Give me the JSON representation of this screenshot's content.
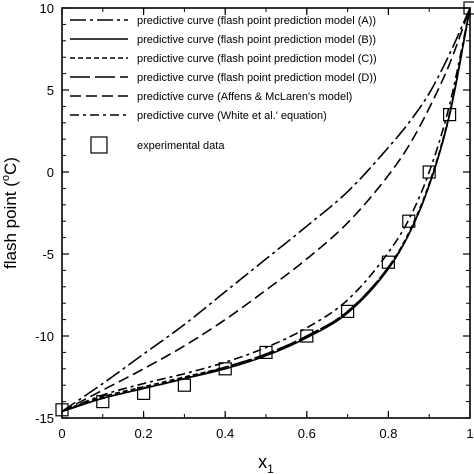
{
  "chart_data": {
    "type": "line",
    "xlabel": "x",
    "xlabel_sub": "1",
    "ylabel": "flash point (",
    "ylabel_sup": "o",
    "ylabel_unit": "C)",
    "xlim": [
      0,
      1
    ],
    "ylim": [
      -15,
      10
    ],
    "x_ticks": [
      0,
      0.2,
      0.4,
      0.6,
      0.8,
      1
    ],
    "x_tick_labels": [
      "0",
      "0.2",
      "0.4",
      "0.6",
      "0.8",
      "1"
    ],
    "y_ticks": [
      -15,
      -10,
      -5,
      0,
      5,
      10
    ],
    "y_tick_labels": [
      "-15",
      "-10",
      "-5",
      "0",
      "5",
      "10"
    ],
    "grid": false,
    "legend_position": "top-left",
    "series": [
      {
        "name": "predictive curve (flash point prediction model (A))",
        "dash": "long-dash-dot",
        "x": [
          0,
          0.1,
          0.2,
          0.3,
          0.4,
          0.5,
          0.6,
          0.7,
          0.8,
          0.85,
          0.9,
          0.95,
          1.0
        ],
        "y": [
          -14.6,
          -12.9,
          -11.1,
          -9.3,
          -7.3,
          -5.3,
          -3.3,
          -1.2,
          1.5,
          3.0,
          4.8,
          7.2,
          10.0
        ]
      },
      {
        "name": "predictive curve (flash point prediction model (B))",
        "dash": "solid",
        "x": [
          0,
          0.1,
          0.2,
          0.3,
          0.4,
          0.5,
          0.6,
          0.7,
          0.8,
          0.85,
          0.9,
          0.95,
          1.0
        ],
        "y": [
          -14.6,
          -13.8,
          -13.2,
          -12.6,
          -12.0,
          -11.2,
          -10.1,
          -8.6,
          -5.9,
          -3.8,
          -0.8,
          3.5,
          10.0
        ]
      },
      {
        "name": "predictive curve (flash point prediction model (C))",
        "dash": "short-dash",
        "x": [
          0,
          0.1,
          0.2,
          0.3,
          0.4,
          0.5,
          0.6,
          0.7,
          0.8,
          0.85,
          0.9,
          0.95,
          1.0
        ],
        "y": [
          -14.6,
          -13.7,
          -13.1,
          -12.5,
          -11.9,
          -11.1,
          -10.0,
          -8.5,
          -5.8,
          -3.7,
          -0.7,
          3.6,
          10.0
        ]
      },
      {
        "name": "predictive curve (flash point prediction model (D))",
        "dash": "long-dash",
        "x": [
          0,
          0.1,
          0.2,
          0.3,
          0.4,
          0.5,
          0.6,
          0.7,
          0.8,
          0.85,
          0.9,
          0.95,
          1.0
        ],
        "y": [
          -14.6,
          -13.8,
          -13.2,
          -12.6,
          -11.9,
          -11.1,
          -10.0,
          -8.5,
          -5.8,
          -3.8,
          -0.8,
          3.5,
          10.0
        ]
      },
      {
        "name": "predictive curve (Affens & McLaren's model)",
        "dash": "medium-dash",
        "x": [
          0,
          0.1,
          0.2,
          0.3,
          0.4,
          0.5,
          0.6,
          0.7,
          0.8,
          0.85,
          0.9,
          0.95,
          1.0
        ],
        "y": [
          -14.6,
          -13.3,
          -12.0,
          -10.6,
          -9.0,
          -7.2,
          -5.3,
          -3.1,
          -0.2,
          1.6,
          3.9,
          6.6,
          10.0
        ]
      },
      {
        "name": "predictive curve (White et al.' equation)",
        "dash": "dash-dot",
        "x": [
          0,
          0.1,
          0.2,
          0.3,
          0.4,
          0.5,
          0.6,
          0.7,
          0.8,
          0.85,
          0.9,
          0.95,
          1.0
        ],
        "y": [
          -14.6,
          -13.6,
          -12.9,
          -12.3,
          -11.6,
          -10.7,
          -9.5,
          -7.8,
          -4.9,
          -2.9,
          0.0,
          4.1,
          10.0
        ]
      }
    ],
    "experimental": {
      "name": "experimental data",
      "marker": "open-square",
      "x": [
        0,
        0.1,
        0.2,
        0.3,
        0.4,
        0.5,
        0.6,
        0.7,
        0.8,
        0.85,
        0.9,
        0.95,
        1.0
      ],
      "y": [
        -14.5,
        -14.0,
        -13.5,
        -13.0,
        -12.0,
        -11.0,
        -10.0,
        -8.5,
        -5.5,
        -3.0,
        0.0,
        3.5,
        10.0
      ]
    }
  }
}
